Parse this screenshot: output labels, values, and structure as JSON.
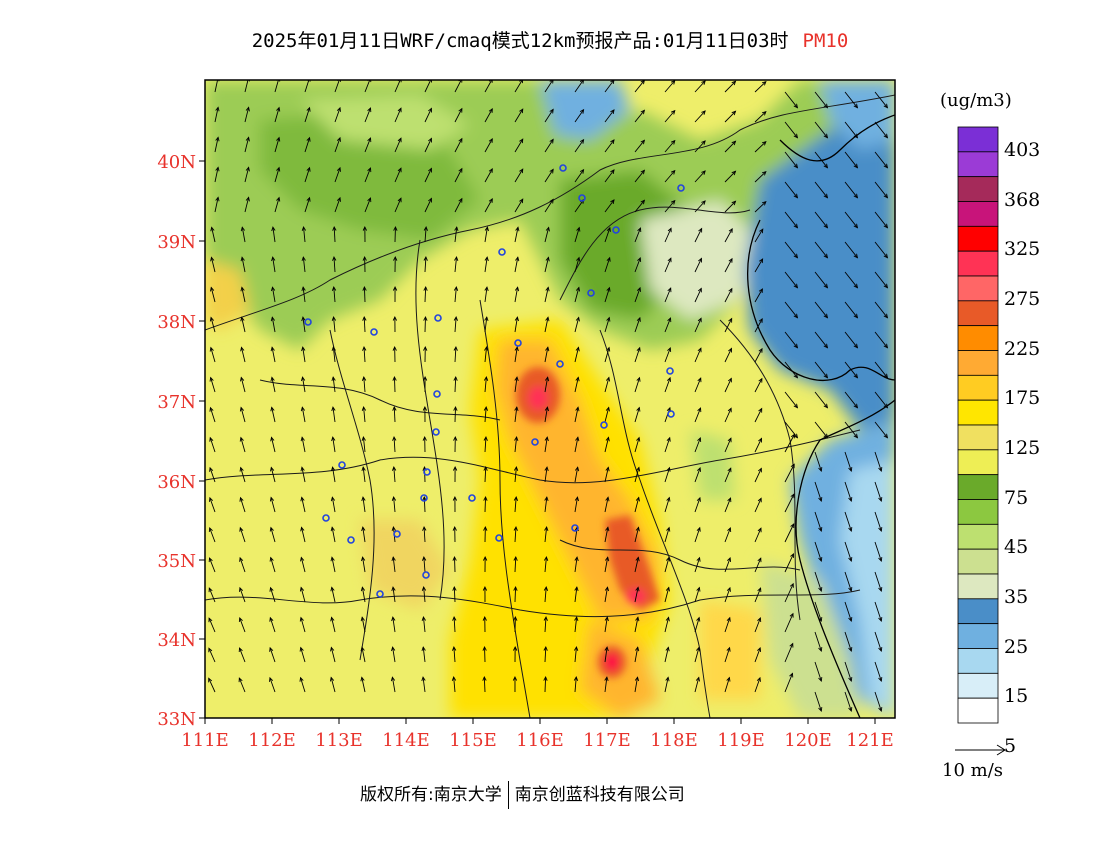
{
  "title": {
    "main": "2025年01月11日WRF/cmaq模式12km预报产品:01月11日03时",
    "species": "PM10"
  },
  "colorbar": {
    "units": "(ug/m3)",
    "labels": [
      "403",
      "368",
      "325",
      "275",
      "225",
      "175",
      "125",
      "75",
      "45",
      "35",
      "25",
      "15",
      "5"
    ],
    "colors": [
      "#7b2fd6",
      "#9b3bd6",
      "#a52a5a",
      "#c8147a",
      "#ff0000",
      "#ff3355",
      "#ff6666",
      "#e85a28",
      "#ff8c00",
      "#ffaa33",
      "#ffcc22",
      "#ffe600",
      "#f0e060",
      "#eeee55",
      "#6aaa2a",
      "#8cc840",
      "#bde070",
      "#cce090",
      "#dde8c0",
      "#4a8ec8",
      "#6fb0e0",
      "#a8d8f0",
      "#d8eef8",
      "#ffffff"
    ]
  },
  "axes": {
    "x_ticks": [
      "111E",
      "112E",
      "113E",
      "114E",
      "115E",
      "116E",
      "117E",
      "118E",
      "119E",
      "120E",
      "121E"
    ],
    "y_ticks": [
      "40N",
      "39N",
      "38N",
      "37N",
      "36N",
      "35N",
      "34N",
      "33N"
    ]
  },
  "vector_reference": {
    "label": "10 m/s"
  },
  "copyright": {
    "left": "版权所有:南京大学",
    "right": "南京创蓝科技有限公司"
  }
}
